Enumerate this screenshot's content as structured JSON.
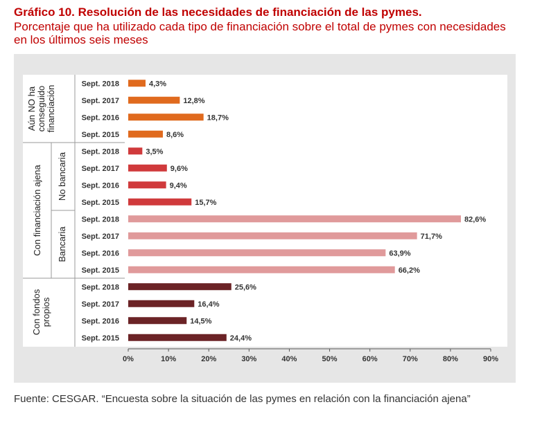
{
  "title": "Gráfico 10. Resolución de las necesidades de financiación de las pymes.",
  "subtitle": "Porcentaje que ha utilizado cada tipo de financiación sobre el total de pymes con necesidades en los últimos seis meses",
  "source": "Fuente: CESGAR. “Encuesta sobre la situación de las pymes en relación con la financiación ajena”",
  "chart_data": {
    "type": "bar",
    "orientation": "horizontal",
    "xlim": [
      0,
      90
    ],
    "xticks": [
      "0%",
      "10%",
      "20%",
      "30%",
      "40%",
      "50%",
      "60%",
      "70%",
      "80%",
      "90%"
    ],
    "grid": false,
    "groups": [
      {
        "label": "Aún NO ha conseguido financiación",
        "subgroups": [
          {
            "label": "",
            "color": "#e06a1e",
            "items": [
              {
                "category": "Sept. 2018",
                "value": 4.3,
                "label": "4,3%"
              },
              {
                "category": "Sept. 2017",
                "value": 12.8,
                "label": "12,8%"
              },
              {
                "category": "Sept. 2016",
                "value": 18.7,
                "label": "18,7%"
              },
              {
                "category": "Sept. 2015",
                "value": 8.6,
                "label": "8,6%"
              }
            ]
          }
        ]
      },
      {
        "label": "Con financiación ajena",
        "subgroups": [
          {
            "label": "No bancaria",
            "color": "#d03a3c",
            "items": [
              {
                "category": "Sept. 2018",
                "value": 3.5,
                "label": "3,5%"
              },
              {
                "category": "Sept. 2017",
                "value": 9.6,
                "label": "9,6%"
              },
              {
                "category": "Sept. 2016",
                "value": 9.4,
                "label": "9,4%"
              },
              {
                "category": "Sept. 2015",
                "value": 15.7,
                "label": "15,7%"
              }
            ]
          },
          {
            "label": "Bancaria",
            "color": "#e09a9b",
            "items": [
              {
                "category": "Sept. 2018",
                "value": 82.6,
                "label": "82,6%"
              },
              {
                "category": "Sept. 2017",
                "value": 71.7,
                "label": "71,7%"
              },
              {
                "category": "Sept. 2016",
                "value": 63.9,
                "label": "63,9%"
              },
              {
                "category": "Sept. 2015",
                "value": 66.2,
                "label": "66,2%"
              }
            ]
          }
        ]
      },
      {
        "label": "Con fondos propios",
        "subgroups": [
          {
            "label": "",
            "color": "#6b2326",
            "items": [
              {
                "category": "Sept. 2018",
                "value": 25.6,
                "label": "25,6%"
              },
              {
                "category": "Sept. 2017",
                "value": 16.4,
                "label": "16,4%"
              },
              {
                "category": "Sept. 2016",
                "value": 14.5,
                "label": "14,5%"
              },
              {
                "category": "Sept. 2015",
                "value": 24.4,
                "label": "24,4%"
              }
            ]
          }
        ]
      }
    ]
  }
}
